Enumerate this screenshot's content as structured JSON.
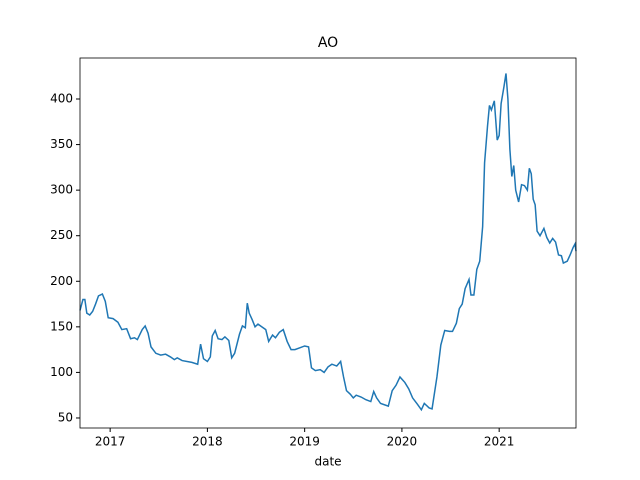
{
  "chart_data": {
    "type": "line",
    "title": "AO",
    "x_label": "date",
    "x": [
      2016.69,
      2016.72,
      2016.74,
      2016.76,
      2016.79,
      2016.82,
      2016.85,
      2016.88,
      2016.92,
      2016.95,
      2016.98,
      2017.03,
      2017.08,
      2017.12,
      2017.17,
      2017.21,
      2017.25,
      2017.28,
      2017.33,
      2017.36,
      2017.39,
      2017.42,
      2017.47,
      2017.52,
      2017.57,
      2017.62,
      2017.66,
      2017.69,
      2017.74,
      2017.84,
      2017.9,
      2017.93,
      2017.96,
      2018.0,
      2018.03,
      2018.05,
      2018.08,
      2018.11,
      2018.15,
      2018.18,
      2018.22,
      2018.25,
      2018.28,
      2018.33,
      2018.36,
      2018.39,
      2018.41,
      2018.43,
      2018.46,
      2018.49,
      2018.52,
      2018.56,
      2018.6,
      2018.63,
      2018.67,
      2018.7,
      2018.74,
      2018.78,
      2018.82,
      2018.86,
      2018.9,
      2018.95,
      2019.0,
      2019.04,
      2019.07,
      2019.11,
      2019.16,
      2019.2,
      2019.24,
      2019.28,
      2019.33,
      2019.37,
      2019.4,
      2019.43,
      2019.47,
      2019.5,
      2019.53,
      2019.58,
      2019.63,
      2019.68,
      2019.71,
      2019.74,
      2019.78,
      2019.86,
      2019.9,
      2019.94,
      2019.98,
      2020.03,
      2020.07,
      2020.11,
      2020.16,
      2020.2,
      2020.23,
      2020.28,
      2020.31,
      2020.36,
      2020.4,
      2020.44,
      2020.49,
      2020.52,
      2020.56,
      2020.59,
      2020.62,
      2020.65,
      2020.69,
      2020.71,
      2020.74,
      2020.77,
      2020.8,
      2020.83,
      2020.85,
      2020.88,
      2020.9,
      2020.92,
      2020.95,
      2020.98,
      2021.0,
      2021.02,
      2021.05,
      2021.07,
      2021.09,
      2021.11,
      2021.13,
      2021.15,
      2021.17,
      2021.2,
      2021.23,
      2021.26,
      2021.29,
      2021.31,
      2021.33,
      2021.35,
      2021.37,
      2021.39,
      2021.42,
      2021.46,
      2021.49,
      2021.52,
      2021.55,
      2021.58,
      2021.61,
      2021.64,
      2021.66,
      2021.7,
      2021.73,
      2021.76,
      2021.78,
      2021.79
    ],
    "series": [
      {
        "name": "AO",
        "color": "#1f77b4",
        "values": [
          168,
          180,
          180,
          165,
          163,
          167,
          175,
          184,
          186,
          178,
          160,
          159,
          155,
          147,
          148,
          137,
          138,
          136,
          147,
          151,
          143,
          128,
          121,
          119,
          120,
          117,
          114,
          116,
          113,
          111,
          109,
          131,
          115,
          112,
          117,
          140,
          146,
          137,
          136,
          139,
          135,
          116,
          121,
          142,
          151,
          149,
          176,
          165,
          158,
          150,
          153,
          150,
          147,
          134,
          141,
          138,
          144,
          147,
          134,
          125,
          125,
          127,
          129,
          128,
          105,
          102,
          103,
          100,
          106,
          109,
          107,
          112,
          95,
          80,
          76,
          72,
          75,
          73,
          70,
          68,
          79,
          72,
          66,
          63,
          80,
          86,
          95,
          89,
          82,
          72,
          65,
          59,
          66,
          61,
          60,
          95,
          130,
          146,
          145,
          145,
          154,
          170,
          175,
          192,
          202,
          185,
          185,
          213,
          222,
          260,
          330,
          370,
          393,
          388,
          398,
          355,
          360,
          395,
          414,
          428,
          400,
          345,
          315,
          327,
          300,
          287,
          306,
          305,
          300,
          324,
          318,
          290,
          284,
          255,
          250,
          258,
          248,
          242,
          247,
          243,
          229,
          228,
          220,
          222,
          229,
          237,
          241,
          233
        ]
      }
    ],
    "xlim": [
      2016.69,
      2021.79
    ],
    "ylim": [
      39,
      445
    ],
    "xticks": [
      2017,
      2018,
      2019,
      2020,
      2021
    ],
    "yticks": [
      50,
      100,
      150,
      200,
      250,
      300,
      350,
      400
    ]
  }
}
